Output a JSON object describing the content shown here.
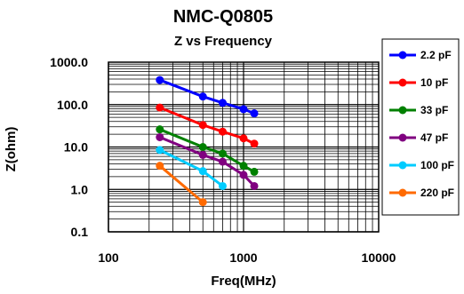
{
  "chart_data": {
    "type": "line",
    "title": "NMC-Q0805",
    "subtitle": "Z vs Frequency",
    "xlabel": "Freq(MHz)",
    "ylabel": "Z(ohm)",
    "x_scale": "log",
    "y_scale": "log",
    "xlim": [
      100,
      10000
    ],
    "ylim": [
      0.1,
      1000
    ],
    "x_tick_labels": [
      "100",
      "1000",
      "10000"
    ],
    "y_tick_labels": [
      "0.1",
      "1.0",
      "10.0",
      "100.0",
      "1000.0"
    ],
    "grid": true,
    "legend_position": "right",
    "series": [
      {
        "name": "2.2 pF",
        "color": "#0000ff",
        "x": [
          240,
          500,
          700,
          1000,
          1200
        ],
        "y": [
          380,
          155,
          110,
          78,
          62
        ]
      },
      {
        "name": "10 pF",
        "color": "#ff0000",
        "x": [
          240,
          500,
          700,
          1000,
          1200
        ],
        "y": [
          85,
          33,
          23,
          16,
          12
        ]
      },
      {
        "name": "33 pF",
        "color": "#008000",
        "x": [
          240,
          500,
          700,
          1000,
          1200
        ],
        "y": [
          26,
          10,
          7,
          3.6,
          2.6
        ]
      },
      {
        "name": "47 pF",
        "color": "#800080",
        "x": [
          240,
          500,
          700,
          1000,
          1200
        ],
        "y": [
          17,
          6.5,
          4.5,
          2.2,
          1.2
        ]
      },
      {
        "name": "100 pF",
        "color": "#00ccff",
        "x": [
          240,
          500,
          700
        ],
        "y": [
          8.5,
          2.7,
          1.2
        ]
      },
      {
        "name": "220 pF",
        "color": "#ff6a00",
        "x": [
          240,
          500
        ],
        "y": [
          3.6,
          0.5
        ]
      }
    ]
  }
}
